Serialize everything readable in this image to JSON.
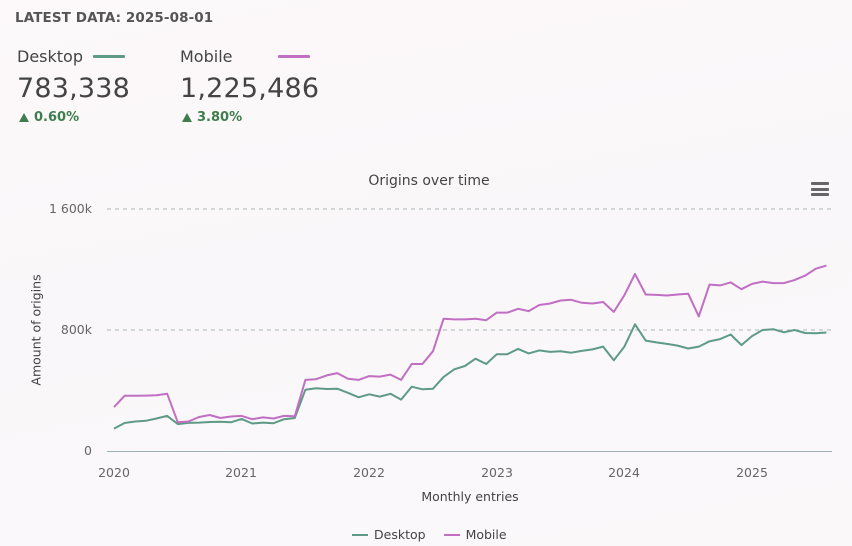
{
  "header": {
    "latest_data": "LATEST DATA: 2025-08-01"
  },
  "kpis": [
    {
      "label": "Desktop",
      "value": "783,338",
      "change": "0.60%",
      "direction": "up",
      "color": "#5e9a86"
    },
    {
      "label": "Mobile",
      "value": "1,225,486",
      "change": "3.80%",
      "direction": "up",
      "color": "#c06fc2"
    }
  ],
  "colors": {
    "desktop": "#5e9a86",
    "mobile": "#c06fc2",
    "positive": "#3f7d4e",
    "gridline": "#a9b7b9",
    "axis": "#9fb0b5"
  },
  "chart": {
    "title": "Origins over time",
    "menu_icon": "hamburger-menu-icon",
    "ylabel": "Amount of origins",
    "xlabel": "Monthly entries",
    "yticks": [
      "0",
      "800k",
      "1 600k"
    ],
    "xticks": [
      "2020",
      "2021",
      "2022",
      "2023",
      "2024",
      "2025"
    ],
    "legend": [
      "Desktop",
      "Mobile"
    ]
  },
  "chart_data": {
    "type": "line",
    "title": "Origins over time",
    "xlabel": "Monthly entries",
    "ylabel": "Amount of origins",
    "ylim": [
      0,
      1600000
    ],
    "yticks": [
      0,
      800000,
      1600000
    ],
    "xticks": [
      "2020",
      "2021",
      "2022",
      "2023",
      "2024",
      "2025"
    ],
    "grid": true,
    "legend_position": "bottom",
    "x_start": "2020-01",
    "x_end": "2025-08",
    "x_step": "monthly",
    "series": [
      {
        "name": "Desktop",
        "color": "#5e9a86",
        "values": [
          148000,
          185000,
          195000,
          200000,
          215000,
          232000,
          178000,
          186000,
          188000,
          192000,
          194000,
          190000,
          212000,
          182000,
          188000,
          184000,
          210000,
          218000,
          405000,
          415000,
          410000,
          412000,
          385000,
          355000,
          375000,
          360000,
          378000,
          340000,
          425000,
          408000,
          412000,
          490000,
          540000,
          562000,
          610000,
          575000,
          640000,
          640000,
          675000,
          645000,
          665000,
          655000,
          660000,
          650000,
          662000,
          672000,
          690000,
          600000,
          690000,
          838000,
          730000,
          718000,
          708000,
          697000,
          678000,
          690000,
          725000,
          740000,
          770000,
          700000,
          760000,
          800000,
          805000,
          785000,
          800000,
          780000,
          778000,
          783338
        ]
      },
      {
        "name": "Mobile",
        "color": "#c06fc2",
        "values": [
          290000,
          365000,
          365000,
          366000,
          368000,
          378000,
          190000,
          195000,
          225000,
          238000,
          218000,
          228000,
          232000,
          210000,
          222000,
          215000,
          232000,
          230000,
          470000,
          475000,
          500000,
          515000,
          478000,
          470000,
          495000,
          492000,
          505000,
          470000,
          575000,
          575000,
          660000,
          875000,
          870000,
          870000,
          875000,
          865000,
          915000,
          915000,
          940000,
          925000,
          965000,
          975000,
          995000,
          1000000,
          980000,
          975000,
          985000,
          920000,
          1030000,
          1170000,
          1035000,
          1032000,
          1028000,
          1035000,
          1040000,
          890000,
          1100000,
          1095000,
          1115000,
          1070000,
          1105000,
          1120000,
          1110000,
          1110000,
          1130000,
          1160000,
          1205000,
          1225486
        ]
      }
    ]
  }
}
